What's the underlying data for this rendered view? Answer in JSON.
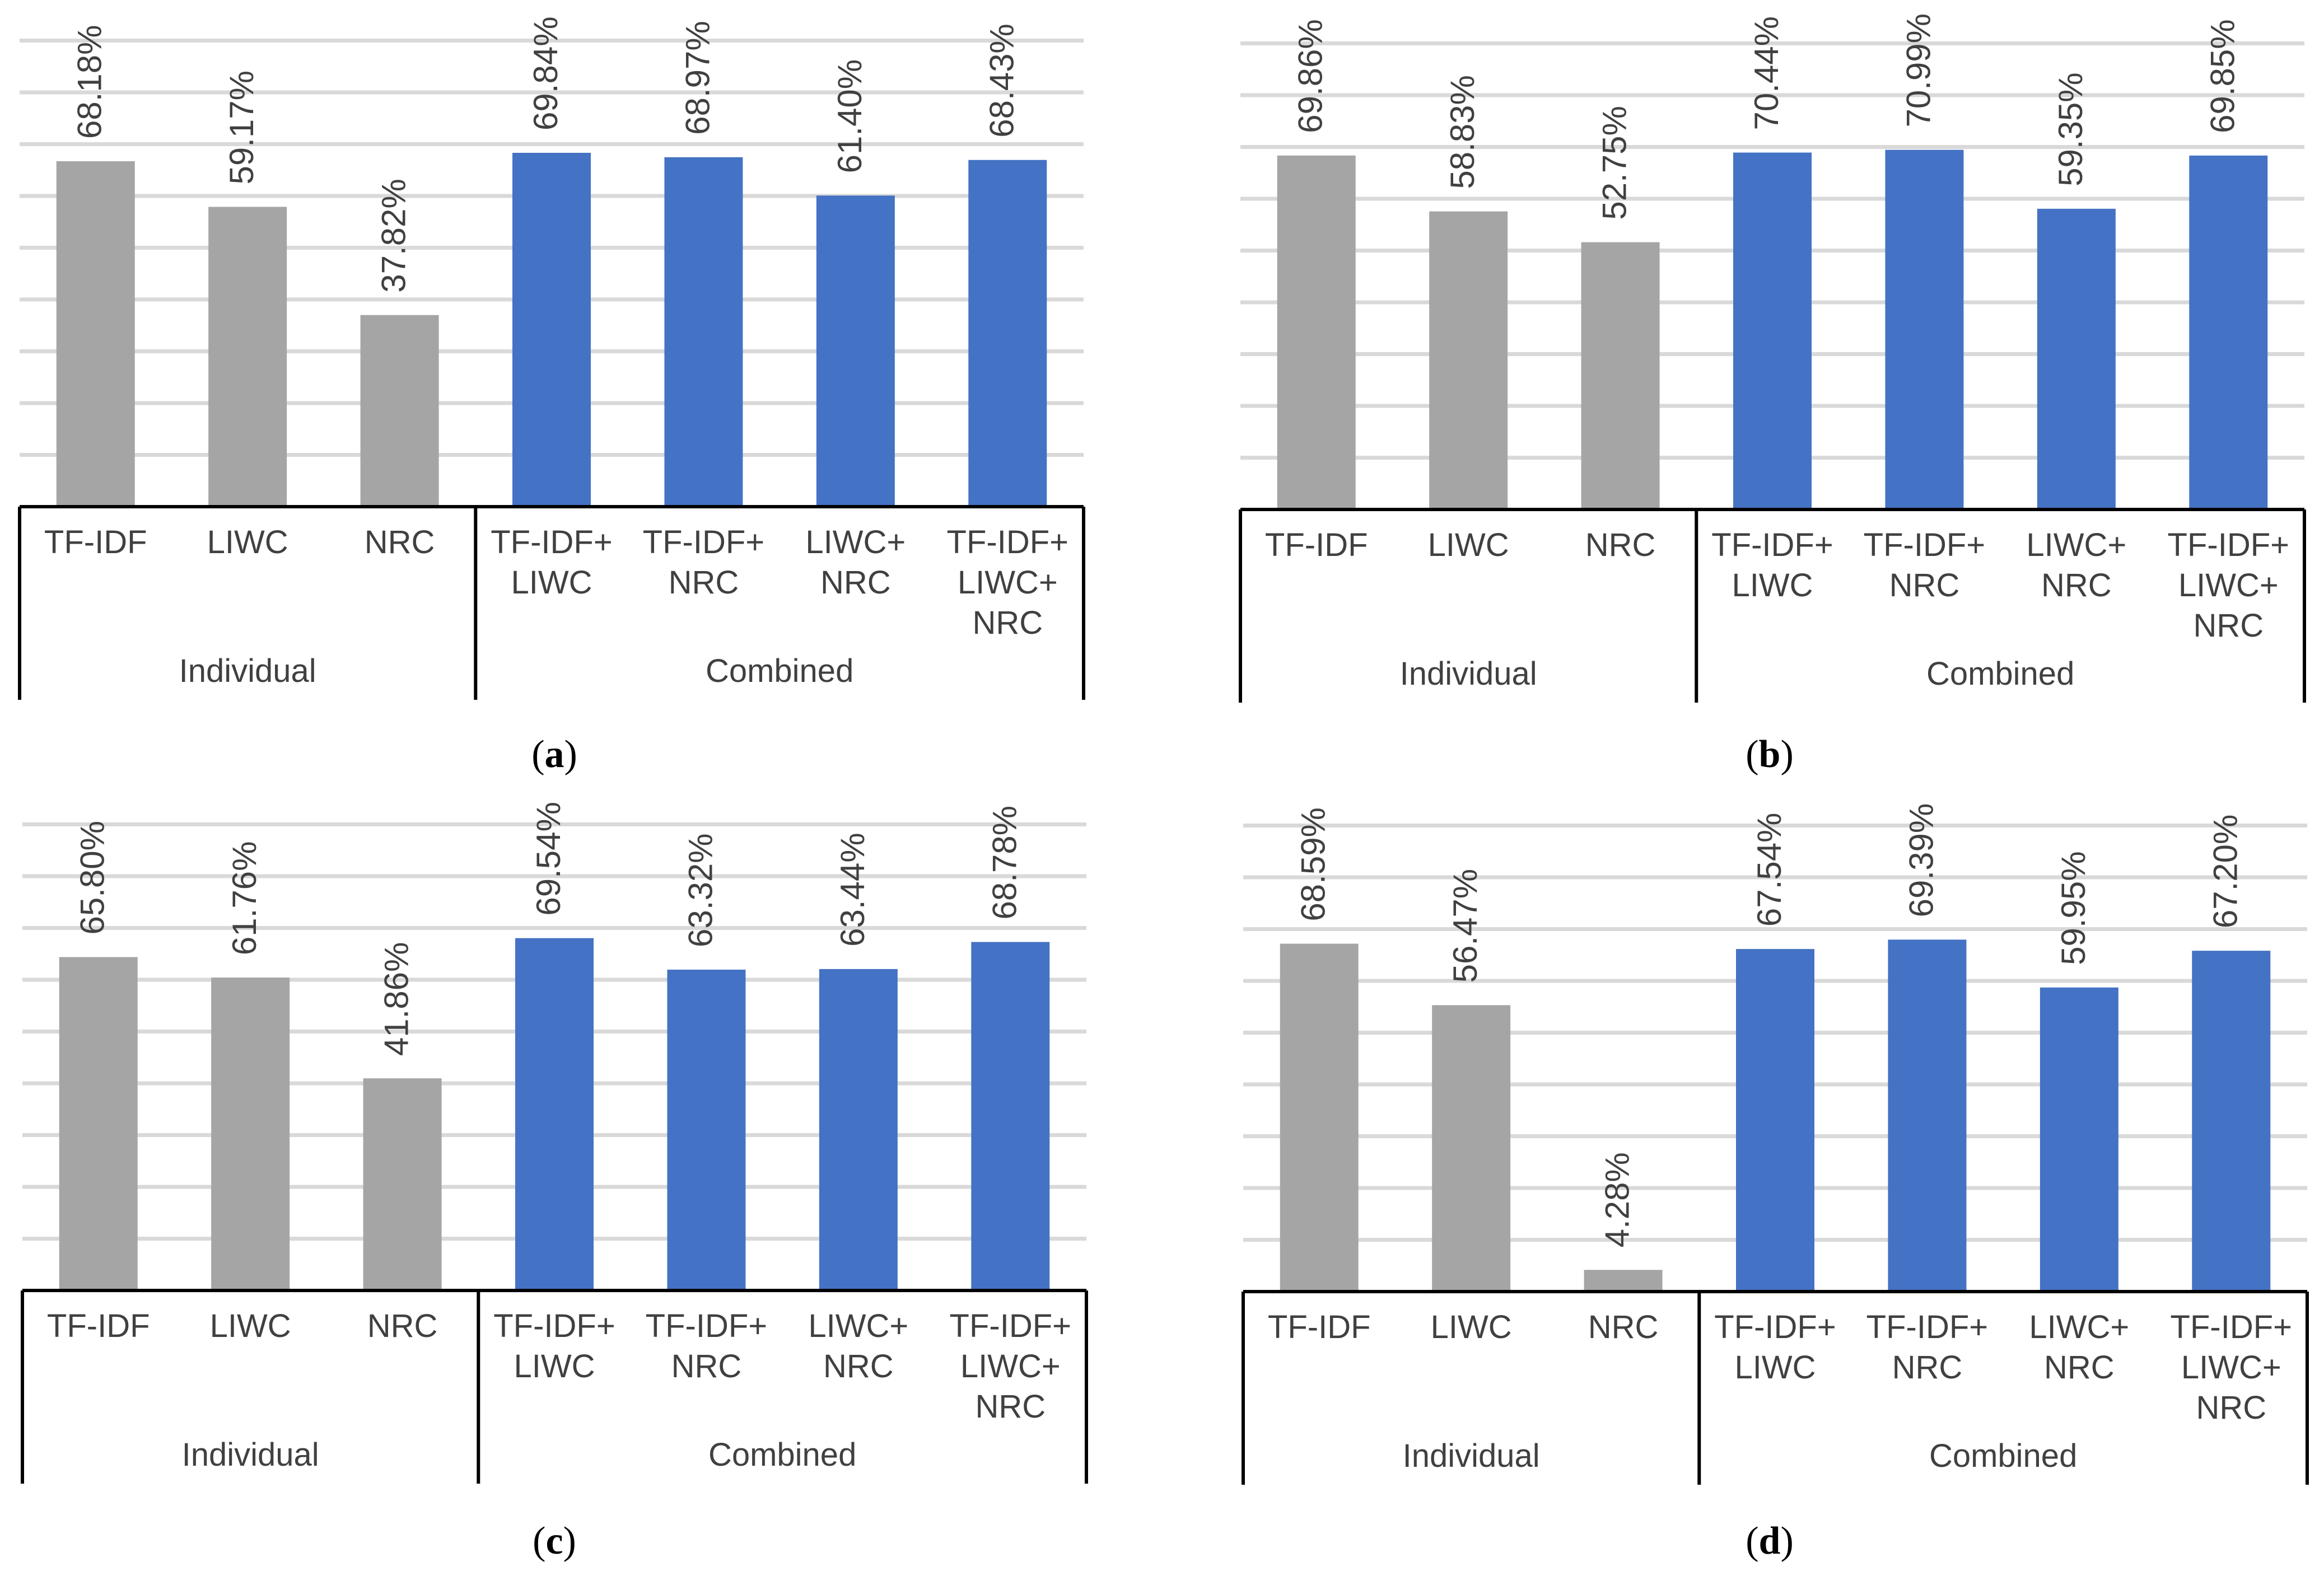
{
  "chart_data": [
    {
      "panel": "a",
      "type": "bar",
      "categories": [
        "TF-IDF",
        "LIWC",
        "NRC",
        "TF-IDF+ LIWC",
        "TF-IDF+ NRC",
        "LIWC+ NRC",
        "TF-IDF+ LIWC+ NRC"
      ],
      "category_lines": [
        [
          "TF-IDF"
        ],
        [
          "LIWC"
        ],
        [
          "NRC"
        ],
        [
          "TF-IDF+",
          "LIWC"
        ],
        [
          "TF-IDF+",
          "NRC"
        ],
        [
          "LIWC+",
          "NRC"
        ],
        [
          "TF-IDF+",
          "LIWC+",
          "NRC"
        ]
      ],
      "values": [
        68.18,
        59.17,
        37.82,
        69.84,
        68.97,
        61.4,
        68.43
      ],
      "value_labels": [
        "68.18%",
        "59.17%",
        "37.82%",
        "69.84%",
        "68.97%",
        "61.40%",
        "68.43%"
      ],
      "groups": [
        {
          "name": "Individual",
          "count": 3,
          "color": "#a5a5a5"
        },
        {
          "name": "Combined",
          "count": 4,
          "color": "#4472c4"
        }
      ],
      "ylim": [
        0,
        100
      ],
      "grid": true
    },
    {
      "panel": "b",
      "type": "bar",
      "categories": [
        "TF-IDF",
        "LIWC",
        "NRC",
        "TF-IDF+ LIWC",
        "TF-IDF+ NRC",
        "LIWC+ NRC",
        "TF-IDF+ LIWC+ NRC"
      ],
      "category_lines": [
        [
          "TF-IDF"
        ],
        [
          "LIWC"
        ],
        [
          "NRC"
        ],
        [
          "TF-IDF+",
          "LIWC"
        ],
        [
          "TF-IDF+",
          "NRC"
        ],
        [
          "LIWC+",
          "NRC"
        ],
        [
          "TF-IDF+",
          "LIWC+",
          "NRC"
        ]
      ],
      "values": [
        69.86,
        58.83,
        52.75,
        70.44,
        70.99,
        59.35,
        69.85
      ],
      "value_labels": [
        "69.86%",
        "58.83%",
        "52.75%",
        "70.44%",
        "70.99%",
        "59.35%",
        "69.85%"
      ],
      "groups": [
        {
          "name": "Individual",
          "count": 3,
          "color": "#a5a5a5"
        },
        {
          "name": "Combined",
          "count": 4,
          "color": "#4472c4"
        }
      ],
      "ylim": [
        0,
        100
      ],
      "grid": true
    },
    {
      "panel": "c",
      "type": "bar",
      "categories": [
        "TF-IDF",
        "LIWC",
        "NRC",
        "TF-IDF+ LIWC",
        "TF-IDF+ NRC",
        "LIWC+ NRC",
        "TF-IDF+ LIWC+ NRC"
      ],
      "category_lines": [
        [
          "TF-IDF"
        ],
        [
          "LIWC"
        ],
        [
          "NRC"
        ],
        [
          "TF-IDF+",
          "LIWC"
        ],
        [
          "TF-IDF+",
          "NRC"
        ],
        [
          "LIWC+",
          "NRC"
        ],
        [
          "TF-IDF+",
          "LIWC+",
          "NRC"
        ]
      ],
      "values": [
        65.8,
        61.76,
        41.86,
        69.54,
        63.32,
        63.44,
        68.78
      ],
      "value_labels": [
        "65.80%",
        "61.76%",
        "41.86%",
        "69.54%",
        "63.32%",
        "63.44%",
        "68.78%"
      ],
      "groups": [
        {
          "name": "Individual",
          "count": 3,
          "color": "#a5a5a5"
        },
        {
          "name": "Combined",
          "count": 4,
          "color": "#4472c4"
        }
      ],
      "ylim": [
        0,
        100
      ],
      "grid": true
    },
    {
      "panel": "d",
      "type": "bar",
      "categories": [
        "TF-IDF",
        "LIWC",
        "NRC",
        "TF-IDF+ LIWC",
        "TF-IDF+ NRC",
        "LIWC+ NRC",
        "TF-IDF+ LIWC+ NRC"
      ],
      "category_lines": [
        [
          "TF-IDF"
        ],
        [
          "LIWC"
        ],
        [
          "NRC"
        ],
        [
          "TF-IDF+",
          "LIWC"
        ],
        [
          "TF-IDF+",
          "NRC"
        ],
        [
          "LIWC+",
          "NRC"
        ],
        [
          "TF-IDF+",
          "LIWC+",
          "NRC"
        ]
      ],
      "values": [
        68.59,
        56.47,
        4.28,
        67.54,
        69.39,
        59.95,
        67.2
      ],
      "value_labels": [
        "68.59%",
        "56.47%",
        "4.28%",
        "67.54%",
        "69.39%",
        "59.95%",
        "67.20%"
      ],
      "groups": [
        {
          "name": "Individual",
          "count": 3,
          "color": "#a5a5a5"
        },
        {
          "name": "Combined",
          "count": 4,
          "color": "#4472c4"
        }
      ],
      "ylim": [
        0,
        100
      ],
      "grid": true
    }
  ]
}
